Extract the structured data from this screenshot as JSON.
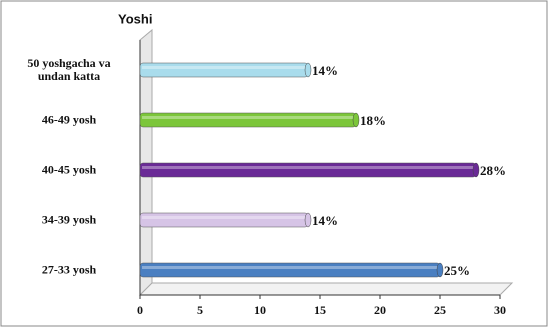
{
  "chart_data": {
    "type": "bar",
    "orientation": "horizontal",
    "title": "Yoshi",
    "categories": [
      "50 yoshgacha va undan katta",
      "46-49 yosh",
      "40-45 yosh",
      "34-39 yosh",
      "27-33 yosh"
    ],
    "values": [
      14,
      18,
      28,
      14,
      25
    ],
    "value_labels": [
      "14%",
      "18%",
      "28%",
      "14%",
      "25%"
    ],
    "colors": [
      "#a9dcec",
      "#7cc63a",
      "#6a2a96",
      "#d6c4e6",
      "#4a7fc1"
    ],
    "xlim": [
      0,
      30
    ],
    "xticks": [
      0,
      5,
      10,
      15,
      20,
      25,
      30
    ],
    "grid": false
  }
}
